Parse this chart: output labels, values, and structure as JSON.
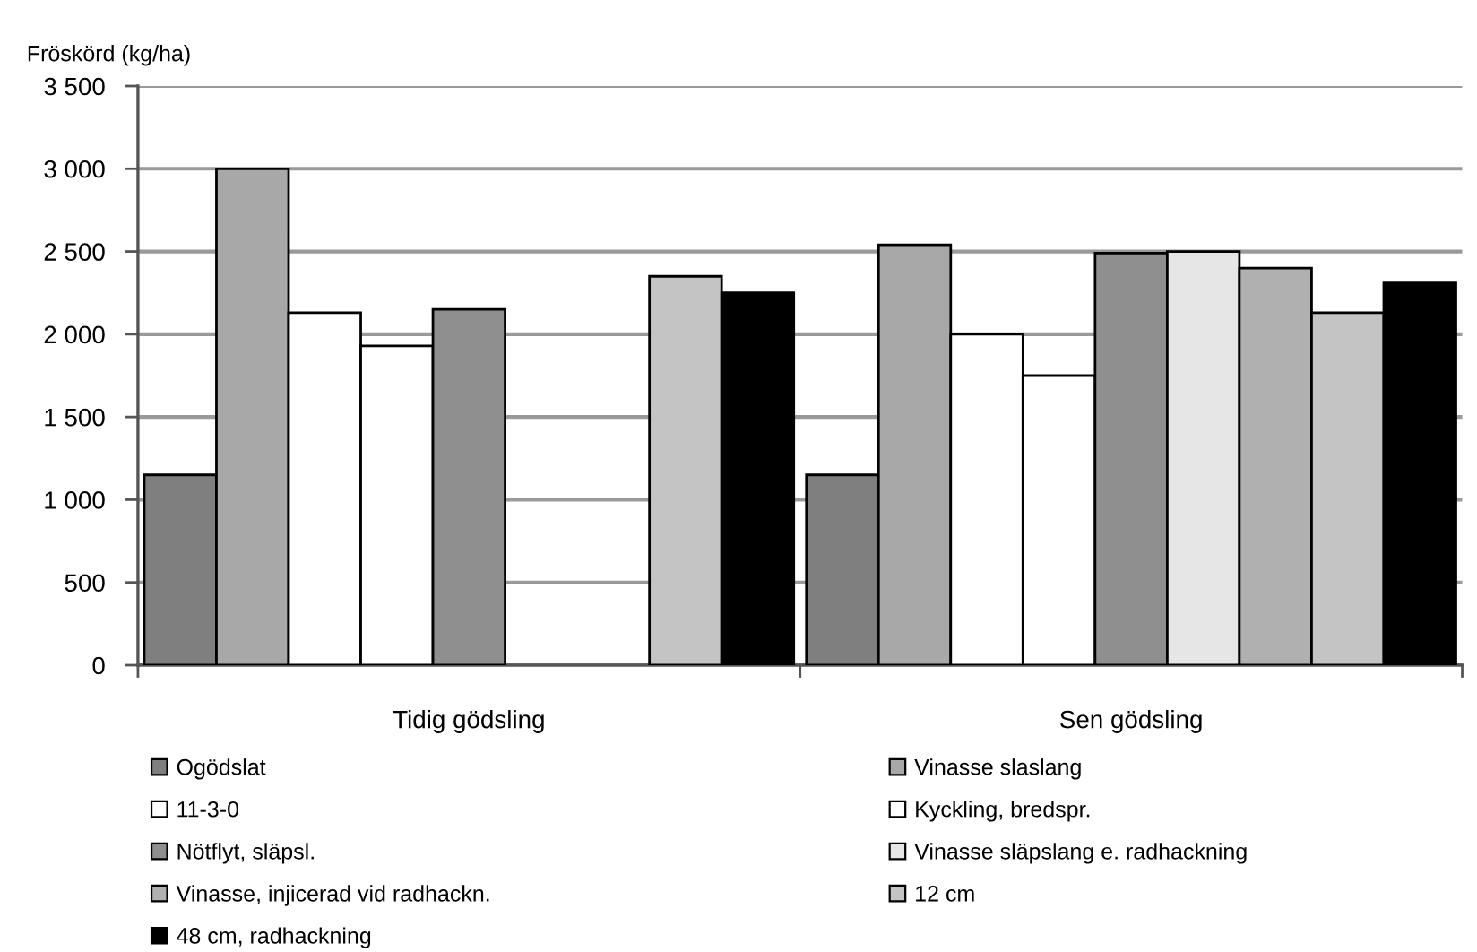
{
  "chart_data": {
    "type": "bar",
    "ylabel": "Fröskörd (kg/ha)",
    "categories": [
      "Tidig gödsling",
      "Sen gödsling"
    ],
    "series": [
      {
        "name": "Ogödslat",
        "color": "#7f7f7f",
        "values": [
          1150,
          1150
        ]
      },
      {
        "name": "Vinasse slaslang",
        "color": "#a8a8a8",
        "values": [
          3000,
          2540
        ]
      },
      {
        "name": "11-3-0",
        "color": "#ffffff",
        "values": [
          2130,
          2000
        ]
      },
      {
        "name": "Kyckling, bredspr.",
        "color": "#ffffff",
        "values": [
          1930,
          1750
        ]
      },
      {
        "name": "Nötflyt, släpsl.",
        "color": "#8f8f8f",
        "values": [
          2150,
          2490
        ]
      },
      {
        "name": "Vinasse släpslang e. radhackning",
        "color": "#e6e6e6",
        "values": [
          null,
          2500
        ]
      },
      {
        "name": "Vinasse, injicerad vid radhackn.",
        "color": "#b0b0b0",
        "values": [
          null,
          2400
        ]
      },
      {
        "name": "12 cm",
        "color": "#c4c4c4",
        "values": [
          2350,
          2130
        ]
      },
      {
        "name": "48 cm, radhackning",
        "color": "#000000",
        "values": [
          2250,
          2310
        ]
      }
    ],
    "ylim": [
      0,
      3500
    ],
    "yticks": [
      0,
      500,
      {
        "value": 1000,
        "label": "1 000"
      },
      {
        "value": 1500,
        "label": "1 500"
      },
      {
        "value": 2000,
        "label": "2 000"
      },
      {
        "value": 2500,
        "label": "2 500"
      },
      {
        "value": 3000,
        "label": "3 000"
      },
      {
        "value": 3500,
        "label": "3 500"
      }
    ],
    "grid": "y",
    "legend": "bottom"
  }
}
